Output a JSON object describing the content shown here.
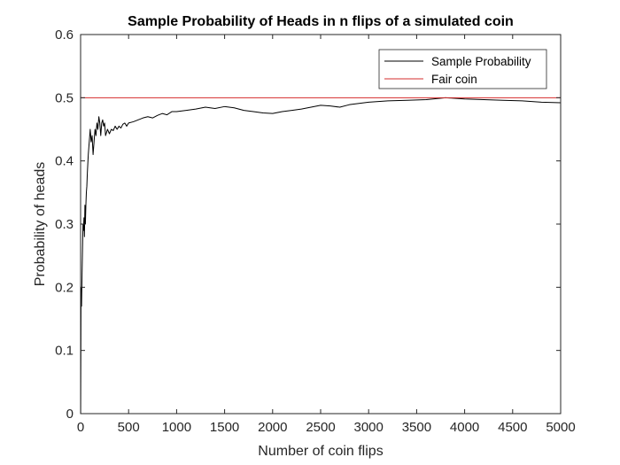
{
  "chart_data": {
    "type": "line",
    "title": "Sample Probability of Heads in n flips of a simulated coin",
    "xlabel": "Number of coin flips",
    "ylabel": "Probability of heads",
    "xlim": [
      0,
      5000
    ],
    "ylim": [
      0,
      0.6
    ],
    "xticks": [
      0,
      500,
      1000,
      1500,
      2000,
      2500,
      3000,
      3500,
      4000,
      4500,
      5000
    ],
    "xtick_labels": [
      "0",
      "500",
      "1000",
      "1500",
      "2000",
      "2500",
      "3000",
      "3500",
      "4000",
      "4500",
      "5000"
    ],
    "yticks": [
      0,
      0.1,
      0.2,
      0.3,
      0.4,
      0.5,
      0.6
    ],
    "ytick_labels": [
      "0",
      "0.1",
      "0.2",
      "0.3",
      "0.4",
      "0.5",
      "0.6"
    ],
    "grid": false,
    "legend_position": "top-right",
    "series": [
      {
        "name": "Sample Probability",
        "color": "#000000",
        "x": [
          1,
          5,
          10,
          15,
          20,
          25,
          30,
          35,
          40,
          45,
          50,
          55,
          60,
          65,
          70,
          80,
          90,
          100,
          110,
          120,
          130,
          140,
          150,
          160,
          170,
          180,
          190,
          200,
          210,
          220,
          230,
          240,
          250,
          260,
          280,
          300,
          320,
          340,
          360,
          380,
          400,
          420,
          440,
          460,
          480,
          500,
          550,
          600,
          650,
          700,
          750,
          800,
          850,
          900,
          950,
          1000,
          1100,
          1200,
          1300,
          1400,
          1500,
          1600,
          1700,
          1800,
          1900,
          2000,
          2100,
          2200,
          2300,
          2400,
          2500,
          2600,
          2700,
          2800,
          2900,
          3000,
          3200,
          3400,
          3600,
          3800,
          4000,
          4200,
          4400,
          4600,
          4800,
          5000
        ],
        "y": [
          0.0,
          0.2,
          0.17,
          0.22,
          0.26,
          0.3,
          0.29,
          0.31,
          0.28,
          0.33,
          0.3,
          0.33,
          0.35,
          0.36,
          0.38,
          0.41,
          0.43,
          0.45,
          0.43,
          0.44,
          0.41,
          0.43,
          0.45,
          0.44,
          0.46,
          0.45,
          0.47,
          0.46,
          0.44,
          0.46,
          0.465,
          0.455,
          0.46,
          0.44,
          0.45,
          0.443,
          0.45,
          0.448,
          0.455,
          0.45,
          0.455,
          0.452,
          0.458,
          0.46,
          0.455,
          0.46,
          0.462,
          0.465,
          0.468,
          0.47,
          0.468,
          0.472,
          0.475,
          0.473,
          0.478,
          0.478,
          0.48,
          0.482,
          0.485,
          0.483,
          0.486,
          0.484,
          0.48,
          0.478,
          0.476,
          0.475,
          0.478,
          0.48,
          0.482,
          0.485,
          0.488,
          0.487,
          0.485,
          0.489,
          0.491,
          0.493,
          0.495,
          0.496,
          0.497,
          0.5,
          0.498,
          0.497,
          0.496,
          0.495,
          0.493,
          0.492
        ]
      },
      {
        "name": "Fair coin",
        "color": "#d62c2c",
        "x": [
          0,
          5000
        ],
        "y": [
          0.5,
          0.5
        ]
      }
    ]
  }
}
